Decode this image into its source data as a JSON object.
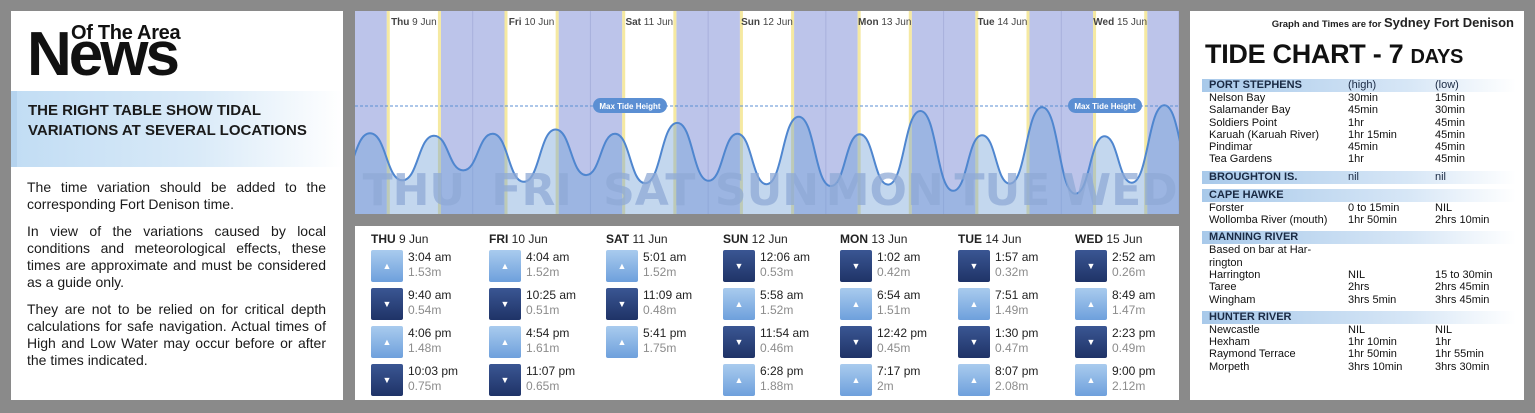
{
  "brand": {
    "top": "Of The Area",
    "main": "News"
  },
  "headline": "THE RIGHT TABLE SHOW TIDAL VARIATIONS AT SEVERAL LOCATIONS",
  "paragraphs": [
    "The time variation should be added to the corresponding Fort Denison time.",
    "In view of the variations caused by local conditions and meteorological effects, these times are approximate and must be considered as a guide only.",
    "They are not to be relied on for critical depth calculations for safe navigation. Actual times of High and Low Water may occur before or after the times indicated."
  ],
  "chart": {
    "max_label": "Max Tide Height",
    "days": [
      {
        "abbr": "Thu",
        "date": "9 Jun",
        "big": "THU"
      },
      {
        "abbr": "Fri",
        "date": "10 Jun",
        "big": "FRI"
      },
      {
        "abbr": "Sat",
        "date": "11 Jun",
        "big": "SAT"
      },
      {
        "abbr": "Sun",
        "date": "12 Jun",
        "big": "SUN"
      },
      {
        "abbr": "Mon",
        "date": "13 Jun",
        "big": "MON"
      },
      {
        "abbr": "Tue",
        "date": "14 Jun",
        "big": "TUE"
      },
      {
        "abbr": "Wed",
        "date": "15 Jun",
        "big": "WED"
      }
    ]
  },
  "times": [
    {
      "day": "THU",
      "date": "9 Jun",
      "tides": [
        {
          "type": "high",
          "time": "3:04 am",
          "height": "1.53m"
        },
        {
          "type": "low",
          "time": "9:40 am",
          "height": "0.54m"
        },
        {
          "type": "high",
          "time": "4:06 pm",
          "height": "1.48m"
        },
        {
          "type": "low",
          "time": "10:03 pm",
          "height": "0.75m"
        }
      ]
    },
    {
      "day": "FRI",
      "date": "10 Jun",
      "tides": [
        {
          "type": "high",
          "time": "4:04 am",
          "height": "1.52m"
        },
        {
          "type": "low",
          "time": "10:25 am",
          "height": "0.51m"
        },
        {
          "type": "high",
          "time": "4:54 pm",
          "height": "1.61m"
        },
        {
          "type": "low",
          "time": "11:07 pm",
          "height": "0.65m"
        }
      ]
    },
    {
      "day": "SAT",
      "date": "11 Jun",
      "tides": [
        {
          "type": "high",
          "time": "5:01 am",
          "height": "1.52m"
        },
        {
          "type": "low",
          "time": "11:09 am",
          "height": "0.48m"
        },
        {
          "type": "high",
          "time": "5:41 pm",
          "height": "1.75m"
        }
      ]
    },
    {
      "day": "SUN",
      "date": "12 Jun",
      "tides": [
        {
          "type": "low",
          "time": "12:06 am",
          "height": "0.53m"
        },
        {
          "type": "high",
          "time": "5:58 am",
          "height": "1.52m"
        },
        {
          "type": "low",
          "time": "11:54 am",
          "height": "0.46m"
        },
        {
          "type": "high",
          "time": "6:28 pm",
          "height": "1.88m"
        }
      ]
    },
    {
      "day": "MON",
      "date": "13 Jun",
      "tides": [
        {
          "type": "low",
          "time": "1:02 am",
          "height": "0.42m"
        },
        {
          "type": "high",
          "time": "6:54 am",
          "height": "1.51m"
        },
        {
          "type": "low",
          "time": "12:42 pm",
          "height": "0.45m"
        },
        {
          "type": "high",
          "time": "7:17 pm",
          "height": "2m"
        }
      ]
    },
    {
      "day": "TUE",
      "date": "14 Jun",
      "tides": [
        {
          "type": "low",
          "time": "1:57 am",
          "height": "0.32m"
        },
        {
          "type": "high",
          "time": "7:51 am",
          "height": "1.49m"
        },
        {
          "type": "low",
          "time": "1:30 pm",
          "height": "0.47m"
        },
        {
          "type": "high",
          "time": "8:07 pm",
          "height": "2.08m"
        }
      ]
    },
    {
      "day": "WED",
      "date": "15 Jun",
      "tides": [
        {
          "type": "low",
          "time": "2:52 am",
          "height": "0.26m"
        },
        {
          "type": "high",
          "time": "8:49 am",
          "height": "1.47m"
        },
        {
          "type": "low",
          "time": "2:23 pm",
          "height": "0.49m"
        },
        {
          "type": "high",
          "time": "9:00 pm",
          "height": "2.12m"
        }
      ]
    }
  ],
  "right": {
    "note_prefix": "Graph and Times are for",
    "note_place": "Sydney Fort Denison",
    "title": "TIDE CHART - 7",
    "title_days": "DAYS",
    "sections": [
      {
        "name": "PORT STEPHENS",
        "high": "(high)",
        "low": "(low)",
        "rows": [
          [
            "Nelson Bay",
            "30min",
            "15min"
          ],
          [
            "Salamander Bay",
            "45min",
            "30min"
          ],
          [
            "Soldiers Point",
            "1hr",
            "45min"
          ],
          [
            "Karuah (Karuah River)",
            "1hr 15min",
            "45min"
          ],
          [
            "Pindimar",
            "45min",
            "45min"
          ],
          [
            "Tea Gardens",
            "1hr",
            "45min"
          ]
        ]
      },
      {
        "name": "BROUGHTON IS.",
        "high": "nil",
        "low": "nil",
        "rows": []
      },
      {
        "name": "CAPE HAWKE",
        "high": "",
        "low": "",
        "rows": [
          [
            "Forster",
            "0 to 15min",
            "NIL"
          ],
          [
            "Wollomba River (mouth)",
            "1hr 50min",
            "2hrs 10min"
          ]
        ]
      },
      {
        "name": "MANNING RIVER",
        "high": "",
        "low": "",
        "rows": [
          [
            "Based on bar at Har-",
            "",
            ""
          ],
          [
            "rington",
            "",
            ""
          ],
          [
            "Harrington",
            "NIL",
            "15 to 30min"
          ],
          [
            "Taree",
            "2hrs",
            "2hrs 45min"
          ],
          [
            "Wingham",
            "3hrs 5min",
            "3hrs 45min"
          ]
        ]
      },
      {
        "name": "HUNTER RIVER",
        "high": "",
        "low": "",
        "rows": [
          [
            "Newcastle",
            "NIL",
            "NIL"
          ],
          [
            "Hexham",
            "1hr 10min",
            "1hr"
          ],
          [
            "Raymond Terrace",
            "1hr 50min",
            "1hr 55min"
          ],
          [
            "Morpeth",
            "3hrs 10min",
            "3hrs 30min"
          ]
        ]
      }
    ]
  },
  "colors": {
    "night": "#bcc4ea",
    "day": "#ffffff",
    "daylight_edge": "#f3e48a",
    "wave": "#6f9fd6",
    "label_pill": "#5b8fd3"
  }
}
